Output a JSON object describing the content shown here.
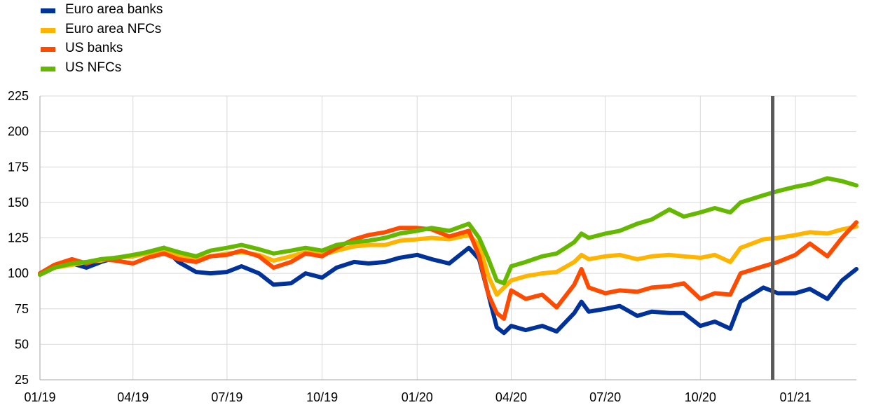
{
  "chart_data": {
    "type": "line",
    "title": "",
    "xlabel": "",
    "ylabel": "",
    "ylim": [
      25,
      225
    ],
    "yticks": [
      25,
      50,
      75,
      100,
      125,
      150,
      175,
      200,
      225
    ],
    "xlim": [
      "2019-01-01",
      "2021-03-01"
    ],
    "xticks": [
      {
        "date": "2019-01-01",
        "label": "01/19"
      },
      {
        "date": "2019-04-01",
        "label": "04/19"
      },
      {
        "date": "2019-07-01",
        "label": "07/19"
      },
      {
        "date": "2019-10-01",
        "label": "10/19"
      },
      {
        "date": "2020-01-01",
        "label": "01/20"
      },
      {
        "date": "2020-04-01",
        "label": "04/20"
      },
      {
        "date": "2020-07-01",
        "label": "07/20"
      },
      {
        "date": "2020-10-01",
        "label": "10/20"
      },
      {
        "date": "2021-01-01",
        "label": "01/21"
      }
    ],
    "grid": "vertical and horizontal",
    "legend_position": "top-left",
    "vertical_marker": {
      "date": "2020-12-10",
      "color": "#5a5a5a"
    },
    "series": [
      {
        "name": "Euro area banks",
        "color": "#003299",
        "points": [
          [
            "2019-01-01",
            99
          ],
          [
            "2019-01-15",
            104
          ],
          [
            "2019-02-01",
            107
          ],
          [
            "2019-02-15",
            104
          ],
          [
            "2019-03-01",
            108
          ],
          [
            "2019-03-15",
            111
          ],
          [
            "2019-04-01",
            112
          ],
          [
            "2019-04-15",
            115
          ],
          [
            "2019-05-01",
            118
          ],
          [
            "2019-05-15",
            108
          ],
          [
            "2019-06-01",
            101
          ],
          [
            "2019-06-15",
            100
          ],
          [
            "2019-07-01",
            101
          ],
          [
            "2019-07-15",
            105
          ],
          [
            "2019-08-01",
            100
          ],
          [
            "2019-08-15",
            92
          ],
          [
            "2019-09-01",
            93
          ],
          [
            "2019-09-15",
            100
          ],
          [
            "2019-10-01",
            97
          ],
          [
            "2019-10-15",
            104
          ],
          [
            "2019-11-01",
            108
          ],
          [
            "2019-11-15",
            107
          ],
          [
            "2019-12-01",
            108
          ],
          [
            "2019-12-15",
            111
          ],
          [
            "2020-01-01",
            113
          ],
          [
            "2020-01-15",
            110
          ],
          [
            "2020-02-01",
            107
          ],
          [
            "2020-02-20",
            118
          ],
          [
            "2020-03-01",
            110
          ],
          [
            "2020-03-10",
            85
          ],
          [
            "2020-03-18",
            62
          ],
          [
            "2020-03-25",
            58
          ],
          [
            "2020-04-01",
            63
          ],
          [
            "2020-04-15",
            60
          ],
          [
            "2020-05-01",
            63
          ],
          [
            "2020-05-15",
            59
          ],
          [
            "2020-06-01",
            72
          ],
          [
            "2020-06-08",
            80
          ],
          [
            "2020-06-15",
            73
          ],
          [
            "2020-07-01",
            75
          ],
          [
            "2020-07-15",
            77
          ],
          [
            "2020-08-01",
            70
          ],
          [
            "2020-08-15",
            73
          ],
          [
            "2020-09-01",
            72
          ],
          [
            "2020-09-15",
            72
          ],
          [
            "2020-10-01",
            63
          ],
          [
            "2020-10-15",
            66
          ],
          [
            "2020-10-30",
            61
          ],
          [
            "2020-11-09",
            80
          ],
          [
            "2020-12-01",
            90
          ],
          [
            "2020-12-15",
            86
          ],
          [
            "2021-01-01",
            86
          ],
          [
            "2021-01-15",
            89
          ],
          [
            "2021-02-01",
            82
          ],
          [
            "2021-02-15",
            95
          ],
          [
            "2021-03-01",
            103
          ]
        ]
      },
      {
        "name": "Euro area NFCs",
        "color": "#ffb400",
        "points": [
          [
            "2019-01-01",
            100
          ],
          [
            "2019-01-15",
            104
          ],
          [
            "2019-02-01",
            106
          ],
          [
            "2019-02-15",
            108
          ],
          [
            "2019-03-01",
            109
          ],
          [
            "2019-03-15",
            111
          ],
          [
            "2019-04-01",
            112
          ],
          [
            "2019-04-15",
            114
          ],
          [
            "2019-05-01",
            116
          ],
          [
            "2019-05-15",
            112
          ],
          [
            "2019-06-01",
            110
          ],
          [
            "2019-06-15",
            112
          ],
          [
            "2019-07-01",
            114
          ],
          [
            "2019-07-15",
            115
          ],
          [
            "2019-08-01",
            113
          ],
          [
            "2019-08-15",
            109
          ],
          [
            "2019-09-01",
            112
          ],
          [
            "2019-09-15",
            115
          ],
          [
            "2019-10-01",
            113
          ],
          [
            "2019-10-15",
            116
          ],
          [
            "2019-11-01",
            119
          ],
          [
            "2019-11-15",
            120
          ],
          [
            "2019-12-01",
            120
          ],
          [
            "2019-12-15",
            123
          ],
          [
            "2020-01-01",
            124
          ],
          [
            "2020-01-15",
            125
          ],
          [
            "2020-02-01",
            124
          ],
          [
            "2020-02-20",
            127
          ],
          [
            "2020-03-01",
            120
          ],
          [
            "2020-03-10",
            98
          ],
          [
            "2020-03-18",
            85
          ],
          [
            "2020-03-25",
            90
          ],
          [
            "2020-04-01",
            95
          ],
          [
            "2020-04-15",
            98
          ],
          [
            "2020-05-01",
            100
          ],
          [
            "2020-05-15",
            101
          ],
          [
            "2020-06-01",
            108
          ],
          [
            "2020-06-08",
            113
          ],
          [
            "2020-06-15",
            110
          ],
          [
            "2020-07-01",
            112
          ],
          [
            "2020-07-15",
            113
          ],
          [
            "2020-08-01",
            110
          ],
          [
            "2020-08-15",
            112
          ],
          [
            "2020-09-01",
            113
          ],
          [
            "2020-09-15",
            112
          ],
          [
            "2020-10-01",
            111
          ],
          [
            "2020-10-15",
            113
          ],
          [
            "2020-10-30",
            108
          ],
          [
            "2020-11-09",
            118
          ],
          [
            "2020-12-01",
            124
          ],
          [
            "2020-12-15",
            125
          ],
          [
            "2021-01-01",
            127
          ],
          [
            "2021-01-15",
            129
          ],
          [
            "2021-02-01",
            128
          ],
          [
            "2021-02-15",
            131
          ],
          [
            "2021-03-01",
            133
          ]
        ]
      },
      {
        "name": "US banks",
        "color": "#ff4b00",
        "points": [
          [
            "2019-01-01",
            100
          ],
          [
            "2019-01-15",
            106
          ],
          [
            "2019-02-01",
            110
          ],
          [
            "2019-02-15",
            107
          ],
          [
            "2019-03-01",
            110
          ],
          [
            "2019-03-15",
            109
          ],
          [
            "2019-04-01",
            107
          ],
          [
            "2019-04-15",
            111
          ],
          [
            "2019-05-01",
            114
          ],
          [
            "2019-05-15",
            110
          ],
          [
            "2019-06-01",
            108
          ],
          [
            "2019-06-15",
            112
          ],
          [
            "2019-07-01",
            113
          ],
          [
            "2019-07-15",
            116
          ],
          [
            "2019-08-01",
            112
          ],
          [
            "2019-08-15",
            104
          ],
          [
            "2019-09-01",
            108
          ],
          [
            "2019-09-15",
            114
          ],
          [
            "2019-10-01",
            112
          ],
          [
            "2019-10-15",
            118
          ],
          [
            "2019-11-01",
            124
          ],
          [
            "2019-11-15",
            127
          ],
          [
            "2019-12-01",
            129
          ],
          [
            "2019-12-15",
            132
          ],
          [
            "2020-01-01",
            132
          ],
          [
            "2020-01-15",
            131
          ],
          [
            "2020-02-01",
            126
          ],
          [
            "2020-02-20",
            130
          ],
          [
            "2020-03-01",
            112
          ],
          [
            "2020-03-10",
            85
          ],
          [
            "2020-03-18",
            72
          ],
          [
            "2020-03-25",
            68
          ],
          [
            "2020-04-01",
            88
          ],
          [
            "2020-04-15",
            82
          ],
          [
            "2020-05-01",
            85
          ],
          [
            "2020-05-15",
            76
          ],
          [
            "2020-06-01",
            92
          ],
          [
            "2020-06-08",
            103
          ],
          [
            "2020-06-15",
            90
          ],
          [
            "2020-07-01",
            86
          ],
          [
            "2020-07-15",
            88
          ],
          [
            "2020-08-01",
            87
          ],
          [
            "2020-08-15",
            90
          ],
          [
            "2020-09-01",
            91
          ],
          [
            "2020-09-15",
            93
          ],
          [
            "2020-10-01",
            82
          ],
          [
            "2020-10-15",
            86
          ],
          [
            "2020-10-30",
            85
          ],
          [
            "2020-11-09",
            100
          ],
          [
            "2020-12-01",
            105
          ],
          [
            "2020-12-15",
            108
          ],
          [
            "2021-01-01",
            113
          ],
          [
            "2021-01-15",
            121
          ],
          [
            "2021-02-01",
            112
          ],
          [
            "2021-02-15",
            125
          ],
          [
            "2021-03-01",
            136
          ]
        ]
      },
      {
        "name": "US NFCs",
        "color": "#65b800",
        "points": [
          [
            "2019-01-01",
            99
          ],
          [
            "2019-01-15",
            104
          ],
          [
            "2019-02-01",
            107
          ],
          [
            "2019-02-15",
            108
          ],
          [
            "2019-03-01",
            110
          ],
          [
            "2019-03-15",
            111
          ],
          [
            "2019-04-01",
            113
          ],
          [
            "2019-04-15",
            115
          ],
          [
            "2019-05-01",
            118
          ],
          [
            "2019-05-15",
            115
          ],
          [
            "2019-06-01",
            112
          ],
          [
            "2019-06-15",
            116
          ],
          [
            "2019-07-01",
            118
          ],
          [
            "2019-07-15",
            120
          ],
          [
            "2019-08-01",
            117
          ],
          [
            "2019-08-15",
            114
          ],
          [
            "2019-09-01",
            116
          ],
          [
            "2019-09-15",
            118
          ],
          [
            "2019-10-01",
            116
          ],
          [
            "2019-10-15",
            120
          ],
          [
            "2019-11-01",
            122
          ],
          [
            "2019-11-15",
            123
          ],
          [
            "2019-12-01",
            125
          ],
          [
            "2019-12-15",
            128
          ],
          [
            "2020-01-01",
            130
          ],
          [
            "2020-01-15",
            132
          ],
          [
            "2020-02-01",
            130
          ],
          [
            "2020-02-20",
            135
          ],
          [
            "2020-03-01",
            125
          ],
          [
            "2020-03-10",
            110
          ],
          [
            "2020-03-18",
            95
          ],
          [
            "2020-03-25",
            93
          ],
          [
            "2020-04-01",
            105
          ],
          [
            "2020-04-15",
            108
          ],
          [
            "2020-05-01",
            112
          ],
          [
            "2020-05-15",
            114
          ],
          [
            "2020-06-01",
            122
          ],
          [
            "2020-06-08",
            128
          ],
          [
            "2020-06-15",
            125
          ],
          [
            "2020-07-01",
            128
          ],
          [
            "2020-07-15",
            130
          ],
          [
            "2020-08-01",
            135
          ],
          [
            "2020-08-15",
            138
          ],
          [
            "2020-09-01",
            145
          ],
          [
            "2020-09-15",
            140
          ],
          [
            "2020-10-01",
            143
          ],
          [
            "2020-10-15",
            146
          ],
          [
            "2020-10-30",
            143
          ],
          [
            "2020-11-09",
            150
          ],
          [
            "2020-12-01",
            155
          ],
          [
            "2020-12-15",
            158
          ],
          [
            "2021-01-01",
            161
          ],
          [
            "2021-01-15",
            163
          ],
          [
            "2021-02-01",
            167
          ],
          [
            "2021-02-15",
            165
          ],
          [
            "2021-03-01",
            162
          ]
        ]
      }
    ]
  }
}
